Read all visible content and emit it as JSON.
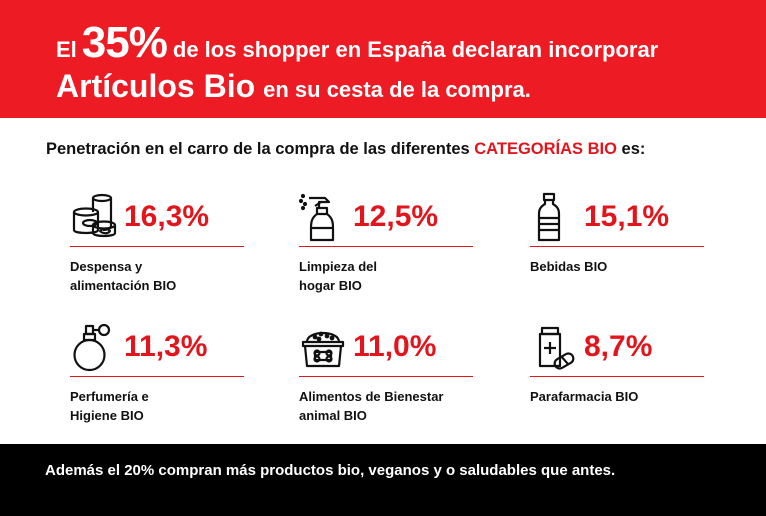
{
  "banner": {
    "prefix": "El",
    "big_value": "35%",
    "rest": "de los shopper en España declaran incorporar",
    "highlight": "Artículos Bio",
    "suffix": "en su cesta de la compra."
  },
  "subtitle": {
    "text": "Penetración en el carro de la compra de las diferentes ",
    "accent": "CATEGORÍAS BIO",
    "end": " es:"
  },
  "categories": [
    {
      "icon": "canned-food-icon",
      "value": "16,3%",
      "label_line1": "Despensa y",
      "label_line2": "alimentación BIO"
    },
    {
      "icon": "spray-bottle-icon",
      "value": "12,5%",
      "label_line1": "Limpieza del",
      "label_line2": "hogar BIO"
    },
    {
      "icon": "bottle-icon",
      "value": "15,1%",
      "label_line1": "Bebidas BIO",
      "label_line2": ""
    },
    {
      "icon": "perfume-icon",
      "value": "11,3%",
      "label_line1": "Perfumería e",
      "label_line2": "Higiene BIO"
    },
    {
      "icon": "pet-food-icon",
      "value": "11,0%",
      "label_line1": "Alimentos de Bienestar",
      "label_line2": "animal BIO"
    },
    {
      "icon": "medicine-icon",
      "value": "8,7%",
      "label_line1": "Parafarmacia BIO",
      "label_line2": ""
    }
  ],
  "footer": {
    "text": "Además el 20% compran más productos bio, veganos y o saludables que antes."
  },
  "colors": {
    "accent": "#e3151c",
    "banner": "#ed1c24",
    "footer": "#000000"
  }
}
